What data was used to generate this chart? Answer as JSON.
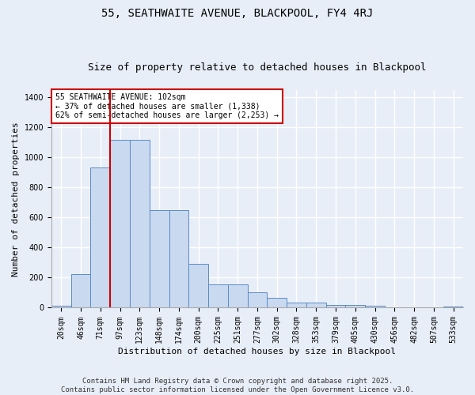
{
  "title": "55, SEATHWAITE AVENUE, BLACKPOOL, FY4 4RJ",
  "subtitle": "Size of property relative to detached houses in Blackpool",
  "xlabel": "Distribution of detached houses by size in Blackpool",
  "ylabel": "Number of detached properties",
  "categories": [
    "20sqm",
    "46sqm",
    "71sqm",
    "97sqm",
    "123sqm",
    "148sqm",
    "174sqm",
    "200sqm",
    "225sqm",
    "251sqm",
    "277sqm",
    "302sqm",
    "328sqm",
    "353sqm",
    "379sqm",
    "405sqm",
    "430sqm",
    "456sqm",
    "482sqm",
    "507sqm",
    "533sqm"
  ],
  "values": [
    15,
    225,
    935,
    1120,
    1120,
    650,
    650,
    290,
    155,
    155,
    100,
    65,
    35,
    35,
    20,
    20,
    15,
    0,
    0,
    0,
    8
  ],
  "bar_color": "#c9d9f0",
  "bar_edge_color": "#5b8ac5",
  "background_color": "#e8eef8",
  "grid_color": "#ffffff",
  "red_line_x": 3,
  "red_line_color": "#cc0000",
  "annotation_text": "55 SEATHWAITE AVENUE: 102sqm\n← 37% of detached houses are smaller (1,338)\n62% of semi-detached houses are larger (2,253) →",
  "annotation_box_color": "#ffffff",
  "annotation_box_edge_color": "#cc0000",
  "footer_line1": "Contains HM Land Registry data © Crown copyright and database right 2025.",
  "footer_line2": "Contains public sector information licensed under the Open Government Licence v3.0.",
  "ylim": [
    0,
    1450
  ],
  "yticks": [
    0,
    200,
    400,
    600,
    800,
    1000,
    1200,
    1400
  ],
  "title_fontsize": 10,
  "subtitle_fontsize": 9,
  "ylabel_fontsize": 8,
  "xlabel_fontsize": 8,
  "tick_fontsize": 7,
  "annotation_fontsize": 7,
  "footer_fontsize": 6.5
}
